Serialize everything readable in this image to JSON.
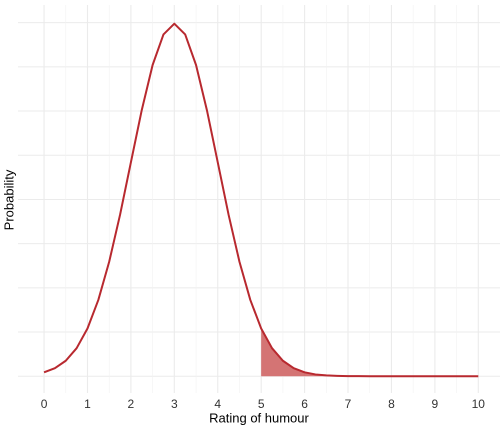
{
  "chart_data": {
    "type": "area-line",
    "xlabel": "Rating of humour",
    "ylabel": "Probability",
    "x": [
      0,
      0.25,
      0.5,
      0.75,
      1,
      1.25,
      1.5,
      1.75,
      2,
      2.25,
      2.5,
      2.75,
      3,
      3.25,
      3.5,
      3.75,
      4,
      4.25,
      4.5,
      4.75,
      5,
      5.25,
      5.5,
      5.75,
      6,
      6.25,
      6.5,
      6.75,
      7,
      7.25,
      7.5,
      7.75,
      8,
      8.25,
      8.5,
      8.75,
      9,
      9.25,
      9.5,
      9.75,
      10
    ],
    "values": [
      0.0044,
      0.0091,
      0.0175,
      0.0317,
      0.054,
      0.0863,
      0.1295,
      0.1826,
      0.242,
      0.3011,
      0.3521,
      0.3867,
      0.3989,
      0.3867,
      0.3521,
      0.3011,
      0.242,
      0.1826,
      0.1295,
      0.0863,
      0.054,
      0.0317,
      0.0175,
      0.0091,
      0.0044,
      0.002,
      0.0009,
      0.0004,
      0.0001,
      5e-05,
      2e-05,
      0,
      0,
      0,
      0,
      0,
      0,
      0,
      0,
      0,
      0
    ],
    "color": "#b8292f",
    "shade_color": "#cd5c5c",
    "shade_from": 5,
    "xlim": [
      -0.6,
      10.5
    ],
    "xticks": [
      0,
      1,
      2,
      3,
      4,
      5,
      6,
      7,
      8,
      9,
      10
    ],
    "ylim": [
      -0.019,
      0.42
    ],
    "ygrid": [
      0,
      0.05,
      0.1,
      0.15,
      0.2,
      0.25,
      0.3,
      0.35,
      0.4
    ],
    "grid": true
  }
}
